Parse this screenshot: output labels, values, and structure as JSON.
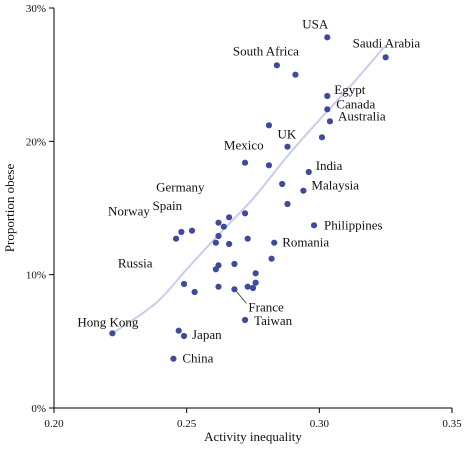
{
  "chart_data": {
    "type": "scatter",
    "xlabel": "Activity inequality",
    "ylabel": "Proportion obese",
    "xlim": [
      0.2,
      0.35
    ],
    "ylim": [
      0,
      30
    ],
    "xticks": [
      {
        "value": 0.2,
        "label": "0.20"
      },
      {
        "value": 0.25,
        "label": "0.25"
      },
      {
        "value": 0.3,
        "label": "0.30"
      },
      {
        "value": 0.35,
        "label": "0.35"
      }
    ],
    "yticks": [
      {
        "value": 0,
        "label": "0%"
      },
      {
        "value": 10,
        "label": "10%"
      },
      {
        "value": 20,
        "label": "20%"
      },
      {
        "value": 30,
        "label": "30%"
      }
    ],
    "colors": {
      "point": "#3f4a9a",
      "trend": "#c9ccec"
    },
    "trend": [
      {
        "x": 0.222,
        "y": 5.6
      },
      {
        "x": 0.238,
        "y": 7.8
      },
      {
        "x": 0.25,
        "y": 10.4
      },
      {
        "x": 0.262,
        "y": 13.0
      },
      {
        "x": 0.275,
        "y": 15.7
      },
      {
        "x": 0.288,
        "y": 18.9
      },
      {
        "x": 0.3,
        "y": 21.6
      },
      {
        "x": 0.312,
        "y": 24.2
      },
      {
        "x": 0.325,
        "y": 27.2
      }
    ],
    "points": [
      {
        "x": 0.303,
        "y": 27.8,
        "label": "USA"
      },
      {
        "x": 0.325,
        "y": 26.3,
        "label": "Saudi Arabia"
      },
      {
        "x": 0.284,
        "y": 25.7,
        "label": "South Africa"
      },
      {
        "x": 0.291,
        "y": 25.0,
        "label": ""
      },
      {
        "x": 0.303,
        "y": 23.4,
        "label": "Egypt"
      },
      {
        "x": 0.303,
        "y": 22.4,
        "label": "Canada"
      },
      {
        "x": 0.304,
        "y": 21.5,
        "label": "Australia"
      },
      {
        "x": 0.281,
        "y": 21.2,
        "label": ""
      },
      {
        "x": 0.301,
        "y": 20.3,
        "label": ""
      },
      {
        "x": 0.288,
        "y": 19.6,
        "label": "UK"
      },
      {
        "x": 0.281,
        "y": 18.2,
        "label": "Mexico"
      },
      {
        "x": 0.272,
        "y": 18.4,
        "label": ""
      },
      {
        "x": 0.296,
        "y": 17.7,
        "label": "India"
      },
      {
        "x": 0.286,
        "y": 16.8,
        "label": ""
      },
      {
        "x": 0.294,
        "y": 16.3,
        "label": "Malaysia"
      },
      {
        "x": 0.288,
        "y": 15.3,
        "label": ""
      },
      {
        "x": 0.272,
        "y": 14.6,
        "label": ""
      },
      {
        "x": 0.266,
        "y": 14.3,
        "label": "Germany"
      },
      {
        "x": 0.262,
        "y": 13.9,
        "label": ""
      },
      {
        "x": 0.264,
        "y": 13.6,
        "label": ""
      },
      {
        "x": 0.298,
        "y": 13.7,
        "label": "Philippines"
      },
      {
        "x": 0.248,
        "y": 13.2,
        "label": ""
      },
      {
        "x": 0.252,
        "y": 13.3,
        "label": "Norway"
      },
      {
        "x": 0.262,
        "y": 12.9,
        "label": "Spain"
      },
      {
        "x": 0.246,
        "y": 12.7,
        "label": ""
      },
      {
        "x": 0.273,
        "y": 12.7,
        "label": ""
      },
      {
        "x": 0.261,
        "y": 12.4,
        "label": ""
      },
      {
        "x": 0.266,
        "y": 12.3,
        "label": ""
      },
      {
        "x": 0.283,
        "y": 12.4,
        "label": "Romania"
      },
      {
        "x": 0.282,
        "y": 11.2,
        "label": ""
      },
      {
        "x": 0.268,
        "y": 10.8,
        "label": ""
      },
      {
        "x": 0.262,
        "y": 10.7,
        "label": ""
      },
      {
        "x": 0.261,
        "y": 10.4,
        "label": "Russia"
      },
      {
        "x": 0.276,
        "y": 10.1,
        "label": ""
      },
      {
        "x": 0.276,
        "y": 9.4,
        "label": ""
      },
      {
        "x": 0.249,
        "y": 9.3,
        "label": ""
      },
      {
        "x": 0.262,
        "y": 9.1,
        "label": ""
      },
      {
        "x": 0.273,
        "y": 9.1,
        "label": ""
      },
      {
        "x": 0.275,
        "y": 9.0,
        "label": ""
      },
      {
        "x": 0.268,
        "y": 8.9,
        "label": "France"
      },
      {
        "x": 0.253,
        "y": 8.7,
        "label": ""
      },
      {
        "x": 0.272,
        "y": 6.6,
        "label": "Taiwan"
      },
      {
        "x": 0.247,
        "y": 5.8,
        "label": ""
      },
      {
        "x": 0.249,
        "y": 5.4,
        "label": "Japan"
      },
      {
        "x": 0.222,
        "y": 5.6,
        "label": "Hong Kong"
      },
      {
        "x": 0.245,
        "y": 3.7,
        "label": "China"
      }
    ]
  }
}
